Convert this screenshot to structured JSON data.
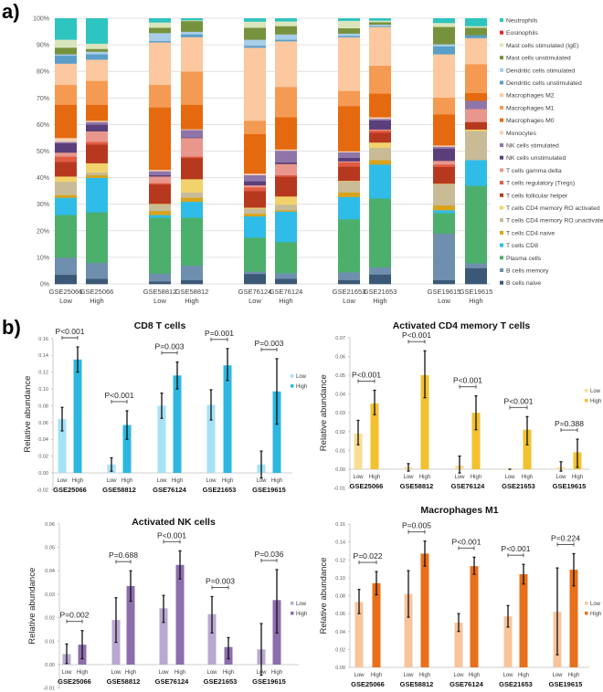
{
  "panel_labels": {
    "a": "a)",
    "b": "b)"
  },
  "chart_data": [
    {
      "type": "bar",
      "stacked": true,
      "ylim": [
        0,
        100
      ],
      "ytick_labels": [
        "0%",
        "10%",
        "20%",
        "30%",
        "40%",
        "50%",
        "60%",
        "70%",
        "80%",
        "90%",
        "100%"
      ],
      "grid": true,
      "legend_position": "right",
      "categories": [
        {
          "dataset": "GSE25066",
          "group": "Low"
        },
        {
          "dataset": "GSE25066",
          "group": "High"
        },
        {
          "dataset": "GSE58812",
          "group": "Low"
        },
        {
          "dataset": "GSE58812",
          "group": "High"
        },
        {
          "dataset": "GSE76124",
          "group": "Low"
        },
        {
          "dataset": "GSE76124",
          "group": "High"
        },
        {
          "dataset": "GSE21653",
          "group": "Low"
        },
        {
          "dataset": "GSE21653",
          "group": "High"
        },
        {
          "dataset": "GSE19615",
          "group": "Low"
        },
        {
          "dataset": "GSE19615",
          "group": "High"
        }
      ],
      "series": [
        {
          "name": "B cells naive",
          "color": "#3b5876",
          "values": [
            3.5,
            2,
            1,
            1.5,
            3.8,
            2,
            1.5,
            3.6,
            1.5,
            6
          ]
        },
        {
          "name": "B cells memory",
          "color": "#6f8fae",
          "values": [
            6.5,
            6,
            3,
            5.5,
            0.9,
            2.1,
            2.9,
            2.7,
            17.5,
            1.8
          ]
        },
        {
          "name": "Plasma cells",
          "color": "#4caf6c",
          "values": [
            16,
            19,
            21,
            18,
            12.8,
            11.7,
            20,
            25.9,
            7.7,
            29.2
          ]
        },
        {
          "name": "T cells CD8",
          "color": "#30bce8",
          "values": [
            6.5,
            13,
            1,
            6,
            8,
            11.5,
            8.4,
            12.8,
            1.1,
            9.7
          ]
        },
        {
          "name": "T cells CD4 naive",
          "color": "#d9a31b",
          "values": [
            1,
            1,
            1.5,
            1.5,
            1,
            0.5,
            1.7,
            1.7,
            1.8,
            0
          ]
        },
        {
          "name": "T cells CD4 memory RO unactivated",
          "color": "#c8bb96",
          "values": [
            5,
            1,
            2.5,
            2,
            1.9,
            2.1,
            4.2,
            4.6,
            8,
            10.9
          ]
        },
        {
          "name": "T cells CD4 memory RO activated",
          "color": "#f2d26c",
          "values": [
            2,
            3.5,
            0.2,
            5,
            0.4,
            3.1,
            0.2,
            2,
            0.2,
            0.6
          ]
        },
        {
          "name": "T cells follicular helper",
          "color": "#b6391f",
          "values": [
            5.5,
            7,
            7.3,
            8,
            6.2,
            7.4,
            5.3,
            3.7,
            6.3,
            2.8
          ]
        },
        {
          "name": "T cells regulatory (Tregs)",
          "color": "#e05b42",
          "values": [
            2,
            1,
            0.5,
            0.5,
            1.4,
            0.6,
            1.6,
            0.8,
            0.9,
            0
          ]
        },
        {
          "name": "T cells gamma delta",
          "color": "#e9978c",
          "values": [
            1.5,
            4,
            2.5,
            7,
            0.8,
            4.2,
            0.4,
            0.4,
            1.4,
            4.9
          ]
        },
        {
          "name": "NK cells unstimulated",
          "color": "#5b3f7b",
          "values": [
            3.5,
            2.5,
            0.5,
            0.2,
            1.5,
            0.6,
            1.3,
            3.4,
            4.6,
            0
          ]
        },
        {
          "name": "NK cells stimulated",
          "color": "#9075a9",
          "values": [
            0.5,
            1,
            1.5,
            2.8,
            2.3,
            4.4,
            2.1,
            0.6,
            0.7,
            3.1
          ]
        },
        {
          "name": "Monocytes",
          "color": "#f3d2b6",
          "values": [
            1.5,
            0.5,
            0.5,
            0.3,
            0.6,
            0.5,
            0.4,
            0.6,
            0.5,
            0
          ]
        },
        {
          "name": "Macrophages M0",
          "color": "#e4690f",
          "values": [
            12.5,
            6,
            23.5,
            9.2,
            14.9,
            12.1,
            17,
            8.9,
            11.7,
            2.9
          ]
        },
        {
          "name": "Macrophages M1",
          "color": "#f59a52",
          "values": [
            7.5,
            9,
            8.5,
            12.5,
            5,
            11.4,
            5.7,
            10.5,
            6.3,
            10.9
          ]
        },
        {
          "name": "Macrophages M2",
          "color": "#fbc89f",
          "values": [
            8,
            8,
            16,
            13,
            27.5,
            17.2,
            20.2,
            14.6,
            16.3,
            9.8
          ]
        },
        {
          "name": "Dendritic cells unstimulated",
          "color": "#5a9fca",
          "values": [
            3,
            2,
            0.5,
            1,
            0.7,
            0.6,
            0.5,
            0.3,
            3,
            1.1
          ]
        },
        {
          "name": "Dendritic cells stimulated",
          "color": "#a9cde6",
          "values": [
            0.5,
            1,
            3,
            1,
            2.3,
            2,
            0.9,
            0.6,
            0.8,
            0
          ]
        },
        {
          "name": "Mast cells unstimulated",
          "color": "#77923d",
          "values": [
            2.5,
            1,
            2,
            4,
            4.5,
            3.1,
            2,
            0.9,
            6.5,
            2.8
          ]
        },
        {
          "name": "Mast cells stimulated (IgE)",
          "color": "#dbe5bd",
          "values": [
            3,
            2,
            2,
            0.3,
            2.3,
            1.8,
            2.8,
            0.6,
            1.5,
            0.6
          ]
        },
        {
          "name": "Eosinophils",
          "color": "#e0202a",
          "values": [
            0,
            0,
            0,
            0,
            0,
            0,
            0,
            0,
            0,
            0
          ]
        },
        {
          "name": "Neutrophils",
          "color": "#2ec4c0",
          "values": [
            8,
            9.5,
            1.5,
            0.7,
            1.2,
            1.1,
            0.9,
            0.8,
            1.7,
            2.9
          ]
        }
      ]
    },
    {
      "type": "bar",
      "title": "CD8 T cells",
      "ylabel": "Relative abundance",
      "ylim": [
        -0.02,
        0.16
      ],
      "ytick_labels": [
        "-0.02",
        "0.00",
        "0.02",
        "0.04",
        "0.06",
        "0.08",
        "0.10",
        "0.12",
        "0.14",
        "0.16"
      ],
      "legend_position": "right",
      "categories": [
        "GSE25066",
        "GSE58812",
        "GSE76124",
        "GSE21653",
        "GSE19615"
      ],
      "series": [
        {
          "name": "Low",
          "color": "#a6e2f5",
          "values": [
            0.064,
            0.01,
            0.08,
            0.081,
            0.01
          ],
          "err_lower": [
            0.05,
            0.002,
            0.065,
            0.063,
            -0.006
          ],
          "err_upper": [
            0.078,
            0.018,
            0.095,
            0.099,
            0.026
          ]
        },
        {
          "name": "High",
          "color": "#2db7e0",
          "values": [
            0.135,
            0.057,
            0.116,
            0.128,
            0.097
          ],
          "err_lower": [
            0.12,
            0.04,
            0.1,
            0.11,
            0.058
          ],
          "err_upper": [
            0.15,
            0.074,
            0.132,
            0.148,
            0.136
          ]
        }
      ],
      "pvalues": [
        "P<0.001",
        "P<0.001",
        "P=0.003",
        "P=0.001",
        "P=0.003"
      ]
    },
    {
      "type": "bar",
      "title": "Activated  CD4 memory T cells",
      "ylabel": "Relative abundance",
      "ylim": [
        -0.01,
        0.07
      ],
      "ytick_labels": [
        "-0.01",
        "0.00",
        "0.01",
        "0.02",
        "0.03",
        "0.04",
        "0.05",
        "0.06",
        "0.07"
      ],
      "legend_position": "right",
      "categories": [
        "GSE25066",
        "GSE58812",
        "GSE76124",
        "GSE21653",
        "GSE19615"
      ],
      "series": [
        {
          "name": "Low",
          "color": "#f8de94",
          "values": [
            0.019,
            0.001,
            0.002,
            0.0,
            0.001
          ],
          "err_lower": [
            0.013,
            -0.001,
            -0.002,
            0.0,
            -0.001
          ],
          "err_upper": [
            0.026,
            0.003,
            0.007,
            0.0,
            0.004
          ]
        },
        {
          "name": "High",
          "color": "#f2c12e",
          "values": [
            0.035,
            0.05,
            0.03,
            0.021,
            0.009
          ],
          "err_lower": [
            0.029,
            0.038,
            0.021,
            0.013,
            0.001
          ],
          "err_upper": [
            0.042,
            0.063,
            0.039,
            0.028,
            0.016
          ]
        }
      ],
      "pvalues": [
        "P<0.001",
        "P<0.001",
        "P<0.001",
        "P<0.001",
        "P=0.388"
      ]
    },
    {
      "type": "bar",
      "title": "Activated NK cells",
      "ylabel": "Relative abundance",
      "ylim": [
        -0.01,
        0.06
      ],
      "ytick_labels": [
        "-0.01",
        "0.00",
        "0.01",
        "0.02",
        "0.03",
        "0.04",
        "0.05",
        "0.06"
      ],
      "legend_position": "right",
      "categories": [
        "GSE25066",
        "GSE58812",
        "GSE76124",
        "GSE21653",
        "GSE19615"
      ],
      "series": [
        {
          "name": "Low",
          "color": "#b9a8d0",
          "values": [
            0.0045,
            0.019,
            0.024,
            0.0215,
            0.0065
          ],
          "err_lower": [
            0.0005,
            0.0095,
            0.018,
            0.0135,
            -0.0045
          ],
          "err_upper": [
            0.0088,
            0.0285,
            0.0295,
            0.029,
            0.0175
          ]
        },
        {
          "name": "High",
          "color": "#8d6ead",
          "values": [
            0.0085,
            0.0335,
            0.0425,
            0.0075,
            0.0275
          ],
          "err_lower": [
            0.0025,
            0.027,
            0.0365,
            0.0025,
            0.0135
          ],
          "err_upper": [
            0.0145,
            0.04,
            0.0485,
            0.0115,
            0.0405
          ]
        }
      ],
      "pvalues": [
        "P=0.002",
        "P=0.688",
        "P<0.001",
        "P=0.003",
        "P=0.036"
      ]
    },
    {
      "type": "bar",
      "title": "Macrophages M1",
      "ylabel": "Relative abundance",
      "ylim": [
        0,
        0.16
      ],
      "ytick_labels": [
        "0.00",
        "0.02",
        "0.04",
        "0.06",
        "0.08",
        "0.10",
        "0.12",
        "0.14",
        "0.16"
      ],
      "legend_position": "right",
      "categories": [
        "GSE25066",
        "GSE58812",
        "GSE76124",
        "GSE21653",
        "GSE19615"
      ],
      "series": [
        {
          "name": "Low",
          "color": "#f9c49b",
          "values": [
            0.073,
            0.082,
            0.05,
            0.057,
            0.062
          ],
          "err_lower": [
            0.06,
            0.056,
            0.04,
            0.045,
            0.014
          ],
          "err_upper": [
            0.087,
            0.108,
            0.06,
            0.069,
            0.111
          ]
        },
        {
          "name": "High",
          "color": "#e8701a",
          "values": [
            0.094,
            0.127,
            0.113,
            0.104,
            0.109
          ],
          "err_lower": [
            0.081,
            0.113,
            0.104,
            0.093,
            0.091
          ],
          "err_upper": [
            0.107,
            0.141,
            0.123,
            0.115,
            0.127
          ]
        }
      ],
      "pvalues": [
        "P=0.022",
        "P=0.005",
        "P<0.001",
        "P<0.001",
        "P=0.224"
      ]
    }
  ]
}
